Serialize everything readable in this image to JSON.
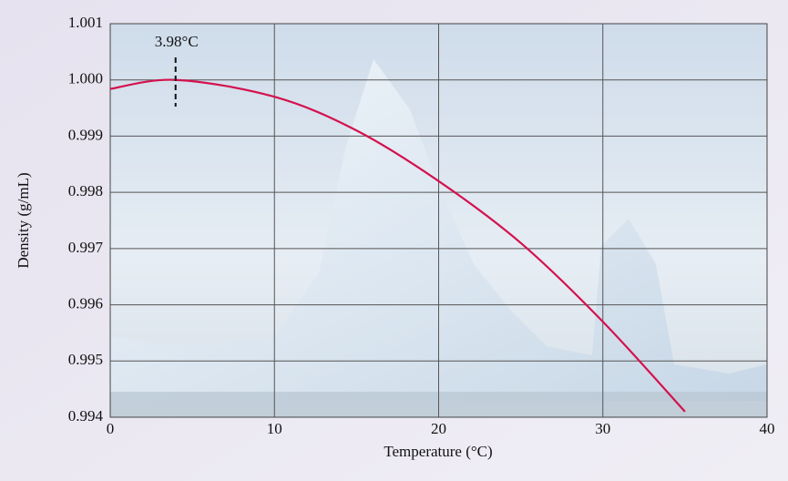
{
  "chart_data": {
    "type": "line",
    "xlabel": "Temperature (°C)",
    "ylabel": "Density (g/mL)",
    "x": [
      0,
      4,
      10,
      15,
      20,
      25,
      30,
      35
    ],
    "series": [
      {
        "color": "#d4124e",
        "values": [
          0.99984,
          1.0,
          0.9997,
          0.9991,
          0.9982,
          0.9971,
          0.9957,
          0.9941
        ]
      }
    ],
    "annotation": {
      "text": "3.98°C",
      "x": 3.98
    },
    "xlim": [
      0,
      40
    ],
    "xticks": [
      0,
      10,
      20,
      30,
      40
    ],
    "ylim": [
      0.994,
      1.001
    ],
    "yticks": [
      0.994,
      0.995,
      0.996,
      0.997,
      0.998,
      0.999,
      {
        "value": 1.0,
        "label": "1.000"
      },
      1.001
    ],
    "grid": true
  }
}
